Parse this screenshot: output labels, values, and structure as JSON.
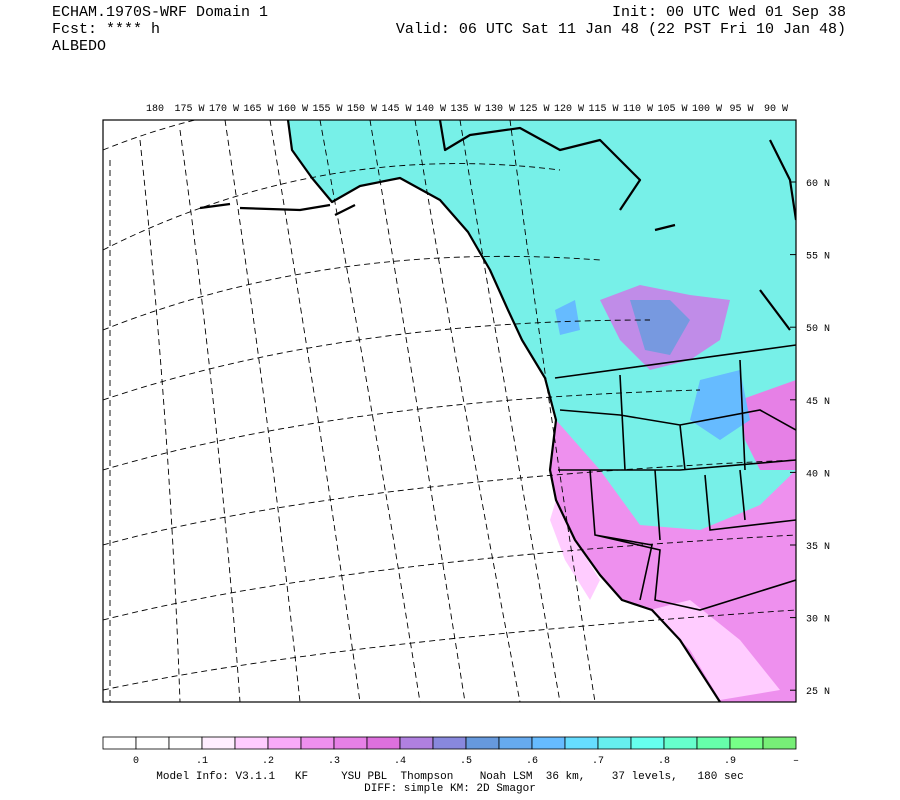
{
  "header": {
    "left": [
      "ECHAM.1970S-WRF Domain 1",
      "Fcst: **** h",
      "ALBEDO"
    ],
    "right": [
      "Init: 00 UTC Wed 01 Sep 38",
      "Valid: 06 UTC Sat 11 Jan 48 (22 PST Fri 10 Jan 48)"
    ]
  },
  "map": {
    "lon_labels": [
      "180",
      "175 W",
      "170 W",
      "165 W",
      "160 W",
      "155 W",
      "150 W",
      "145 W",
      "140 W",
      "135 W",
      "130 W",
      "125 W",
      "120 W",
      "115 W",
      "110 W",
      "105 W",
      "100 W",
      "95 W",
      "90 W"
    ],
    "lat_labels": [
      "60 N",
      "55 N",
      "50 N",
      "45 N",
      "40 N",
      "35 N",
      "30 N",
      "25 N"
    ]
  },
  "colorbar": {
    "colors": [
      "#ffffff",
      "#ffffff",
      "#ffffff",
      "#ffeeff",
      "#ffccff",
      "#f8aaf8",
      "#ee90ee",
      "#e680e6",
      "#dd70dd",
      "#b080e0",
      "#8888dd",
      "#6699dd",
      "#66aaee",
      "#66bbff",
      "#66ddff",
      "#66eeee",
      "#66ffee",
      "#66ffcc",
      "#66ffaa",
      "#77ff88",
      "#77ee77"
    ],
    "labels": [
      "0",
      ".1",
      ".2",
      ".3",
      ".4",
      ".5",
      ".6",
      ".7",
      ".8",
      ".9",
      "–"
    ]
  },
  "footer": [
    "Model Info: V3.1.1   KF     YSU PBL  Thompson    Noah LSM  36 km,    37 levels,   180 sec",
    "DIFF: simple KM: 2D Smagor"
  ]
}
